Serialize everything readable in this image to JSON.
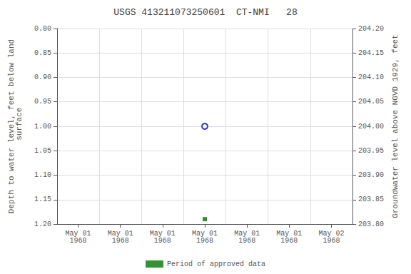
{
  "chart_data": {
    "type": "scatter",
    "title": "USGS 413211073250601  CT-NMI   28",
    "y_label": "Depth to water level, feet below land\n surface",
    "y2_label": "Groundwater level above NGVD 1929, feet",
    "categories": [
      "May 01\n1968",
      "May 01\n1968",
      "May 01\n1968",
      "May 01\n1968",
      "May 01\n1968",
      "May 01\n1968",
      "May 02\n1968"
    ],
    "series": [
      {
        "values": [
          null,
          null,
          null,
          1.0,
          null,
          null,
          null
        ],
        "color": "#0000cc",
        "marker": "open circle"
      },
      {
        "name": "Period of approved data",
        "values": [
          null,
          null,
          null,
          1.19,
          null,
          null,
          null
        ],
        "color": "#007700",
        "marker": "square"
      }
    ],
    "ylim": [
      1.2,
      0.8
    ],
    "yticks": [
      {
        "value": 0.8,
        "label": "0.80"
      },
      0.85,
      {
        "value": 0.9,
        "label": "0.90"
      },
      0.95,
      {
        "value": 1.0,
        "label": "1.00"
      },
      1.05,
      {
        "value": 1.1,
        "label": "1.10"
      },
      1.15,
      {
        "value": 1.2,
        "label": "1.20"
      }
    ],
    "y2lim": [
      203.8,
      204.2
    ],
    "y2ticks": [
      {
        "value": 204.2,
        "label": "204.20"
      },
      204.15,
      {
        "value": 204.1,
        "label": "204.10"
      },
      204.05,
      {
        "value": 204.0,
        "label": "204.00"
      },
      203.95,
      {
        "value": 203.9,
        "label": "203.90"
      },
      203.85,
      {
        "value": 203.8,
        "label": "203.80"
      }
    ],
    "grid": true,
    "legend": "bottom"
  }
}
